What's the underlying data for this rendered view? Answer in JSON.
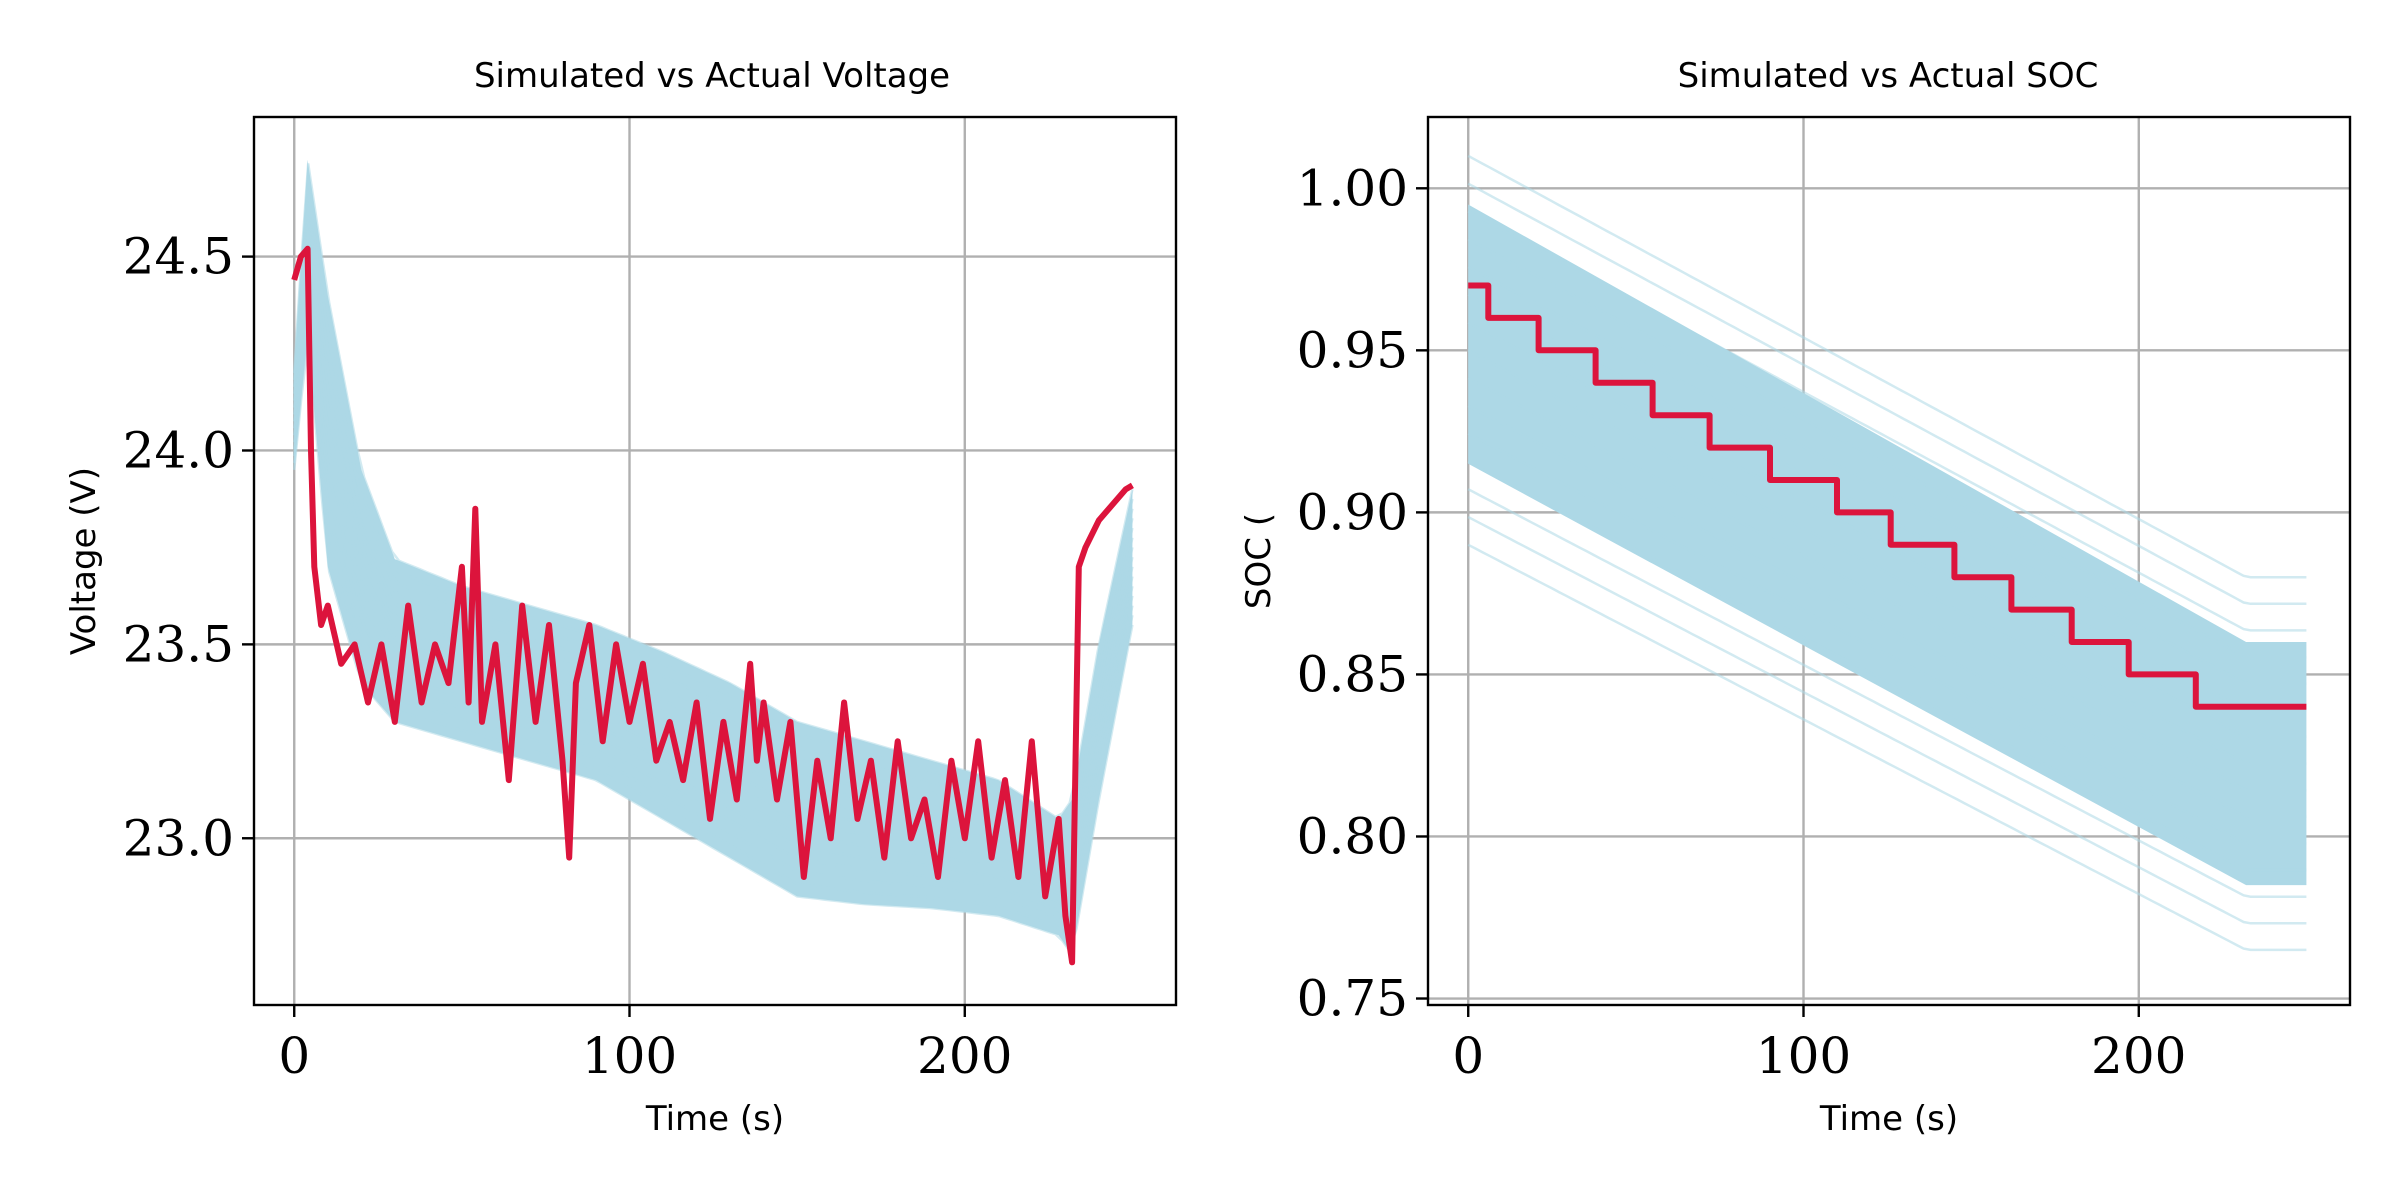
{
  "chart_data": [
    {
      "type": "line",
      "title": "Simulated vs Actual Voltage",
      "xlabel": "Time (s)",
      "ylabel": "Voltage (V)",
      "xlim": [
        -12,
        263
      ],
      "ylim": [
        22.57,
        24.86
      ],
      "xticks": [
        0,
        100,
        200
      ],
      "xtick_labels": [
        "0",
        "100",
        "200"
      ],
      "yticks": [
        23.0,
        23.5,
        24.0,
        24.5
      ],
      "ytick_labels": [
        "23.0",
        "23.5",
        "24.0",
        "24.5"
      ],
      "grid": true,
      "colors": {
        "simulated": "#add8e6",
        "actual": "#dc143c"
      },
      "series": [
        {
          "role": "simulated-band-upper",
          "x": [
            0,
            4,
            10,
            20,
            30,
            50,
            70,
            90,
            110,
            130,
            150,
            170,
            190,
            210,
            228,
            232,
            240,
            250
          ],
          "values": [
            24.2,
            24.75,
            24.4,
            23.95,
            23.72,
            23.65,
            23.6,
            23.55,
            23.48,
            23.4,
            23.3,
            23.25,
            23.2,
            23.15,
            23.05,
            23.1,
            23.5,
            23.9
          ]
        },
        {
          "role": "simulated-band-lower",
          "x": [
            0,
            4,
            10,
            20,
            30,
            50,
            70,
            90,
            110,
            130,
            150,
            170,
            190,
            210,
            228,
            232,
            240,
            250
          ],
          "values": [
            23.95,
            24.3,
            23.7,
            23.4,
            23.3,
            23.25,
            23.2,
            23.15,
            23.05,
            22.95,
            22.85,
            22.83,
            22.82,
            22.8,
            22.75,
            22.7,
            23.1,
            23.55
          ]
        },
        {
          "role": "actual",
          "x": [
            0,
            2,
            4,
            5,
            6,
            8,
            10,
            14,
            18,
            22,
            26,
            30,
            34,
            38,
            42,
            46,
            50,
            52,
            54,
            56,
            60,
            64,
            68,
            72,
            76,
            80,
            82,
            84,
            88,
            92,
            96,
            100,
            104,
            108,
            112,
            116,
            120,
            124,
            128,
            132,
            136,
            138,
            140,
            144,
            148,
            152,
            156,
            160,
            164,
            168,
            172,
            176,
            180,
            184,
            188,
            192,
            196,
            200,
            204,
            208,
            212,
            216,
            220,
            224,
            228,
            230,
            232,
            234,
            236,
            240,
            244,
            248,
            250
          ],
          "values": [
            24.44,
            24.5,
            24.52,
            24.0,
            23.7,
            23.55,
            23.6,
            23.45,
            23.5,
            23.35,
            23.5,
            23.3,
            23.6,
            23.35,
            23.5,
            23.4,
            23.7,
            23.35,
            23.85,
            23.3,
            23.5,
            23.15,
            23.6,
            23.3,
            23.55,
            23.2,
            22.95,
            23.4,
            23.55,
            23.25,
            23.5,
            23.3,
            23.45,
            23.2,
            23.3,
            23.15,
            23.35,
            23.05,
            23.3,
            23.1,
            23.45,
            23.2,
            23.35,
            23.1,
            23.3,
            22.9,
            23.2,
            23.0,
            23.35,
            23.05,
            23.2,
            22.95,
            23.25,
            23.0,
            23.1,
            22.9,
            23.2,
            23.0,
            23.25,
            22.95,
            23.15,
            22.9,
            23.25,
            22.85,
            23.05,
            22.8,
            22.68,
            23.7,
            23.75,
            23.82,
            23.86,
            23.9,
            23.91
          ]
        }
      ]
    },
    {
      "type": "line",
      "title": "Simulated vs Actual SOC",
      "xlabel": "Time (s)",
      "ylabel": "SOC (",
      "xlim": [
        -12,
        263
      ],
      "ylim": [
        0.748,
        1.022
      ],
      "xticks": [
        0,
        100,
        200
      ],
      "xtick_labels": [
        "0",
        "100",
        "200"
      ],
      "yticks": [
        0.75,
        0.8,
        0.85,
        0.9,
        0.95,
        1.0
      ],
      "ytick_labels": [
        "0.75",
        "0.80",
        "0.85",
        "0.90",
        "0.95",
        "1.00"
      ],
      "grid": true,
      "colors": {
        "simulated": "#add8e6",
        "actual": "#dc143c"
      },
      "series": [
        {
          "role": "simulated-band-upper",
          "x": [
            0,
            232,
            250
          ],
          "values": [
            0.995,
            0.86,
            0.86
          ]
        },
        {
          "role": "simulated-band-lower",
          "x": [
            0,
            232,
            250
          ],
          "values": [
            0.915,
            0.785,
            0.785
          ]
        },
        {
          "role": "simulated-outlier-high",
          "x": [
            0,
            232,
            250
          ],
          "values": [
            1.01,
            0.88,
            0.88
          ]
        },
        {
          "role": "simulated-outlier-low",
          "x": [
            0,
            232,
            250
          ],
          "values": [
            0.89,
            0.765,
            0.765
          ]
        },
        {
          "role": "actual",
          "x": [
            0,
            6,
            6,
            21,
            21,
            38,
            38,
            55,
            55,
            72,
            72,
            90,
            90,
            110,
            110,
            126,
            126,
            145,
            145,
            162,
            162,
            180,
            180,
            197,
            197,
            217,
            217,
            250
          ],
          "values": [
            0.97,
            0.97,
            0.96,
            0.96,
            0.95,
            0.95,
            0.94,
            0.94,
            0.93,
            0.93,
            0.92,
            0.92,
            0.91,
            0.91,
            0.9,
            0.9,
            0.89,
            0.89,
            0.88,
            0.88,
            0.87,
            0.87,
            0.86,
            0.86,
            0.85,
            0.85,
            0.84,
            0.84
          ]
        }
      ]
    }
  ]
}
